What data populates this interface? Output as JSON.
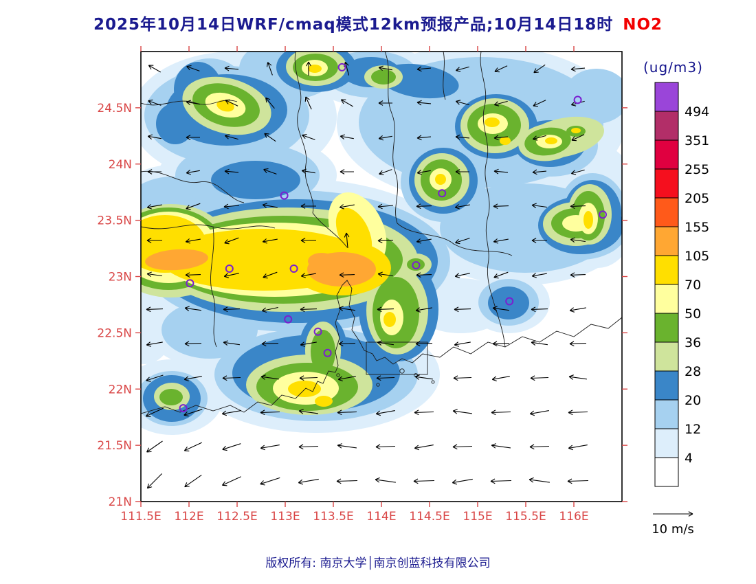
{
  "title": {
    "text": "2025年10月14日WRF/cmaq模式12km预报产品;10月14日18时",
    "pollutant": "NO2"
  },
  "units_label": "(ug/m3)",
  "copyright": "版权所有: 南京大学│南京创蓝科技有限公司",
  "wind_ref": {
    "label": "10 m/s",
    "speed_ms": 10
  },
  "colors": {
    "title": "#1a1a8f",
    "pollutant": "#f20000",
    "axis_label": "#d94545",
    "colorbar_text": "#000000",
    "units_text": "#14148c",
    "marker": "#7a1fd0",
    "wind": "#000000",
    "coast": "#1a1a1a",
    "frame": "#000000"
  },
  "palette": {
    "white": "#ffffff",
    "paleblue": "#ddeefb",
    "lightblue": "#a6d1f0",
    "steelblue": "#3a86c8",
    "palegreen": "#cfe49c",
    "green": "#6ab32e",
    "paleyellow": "#ffff9e",
    "yellow": "#ffdf00",
    "orange": "#ffa733",
    "orangered": "#ff5a1a",
    "red": "#f50f1e",
    "crimson": "#e00040",
    "maroon": "#b22e68",
    "purple": "#9a45d9"
  },
  "axes": {
    "lat": {
      "labels": [
        "24.5N",
        "24N",
        "23.5N",
        "23N",
        "22.5N",
        "22N",
        "21.5N",
        "21N"
      ],
      "values": [
        24.5,
        24,
        23.5,
        23,
        22.5,
        22,
        21.5,
        21
      ]
    },
    "lon": {
      "labels": [
        "111.5E",
        "112E",
        "112.5E",
        "113E",
        "113.5E",
        "114E",
        "114.5E",
        "115E",
        "115.5E",
        "116E"
      ],
      "values": [
        111.5,
        112,
        112.5,
        113,
        113.5,
        114,
        114.5,
        115,
        115.5,
        116
      ]
    },
    "lon_range": [
      111.5,
      116.5
    ],
    "lat_range": [
      21.0,
      25.0
    ]
  },
  "colorbar": {
    "labels_top_down": [
      "494",
      "351",
      "255",
      "205",
      "155",
      "105",
      "70",
      "50",
      "36",
      "28",
      "20",
      "12",
      "4"
    ],
    "order_top_down": [
      "purple",
      "maroon",
      "crimson",
      "red",
      "orangered",
      "orange",
      "yellow",
      "paleyellow",
      "green",
      "palegreen",
      "steelblue",
      "lightblue",
      "paleblue",
      "white"
    ]
  },
  "stations": [
    {
      "lon": 113.59,
      "lat": 24.86
    },
    {
      "lon": 116.04,
      "lat": 24.57
    },
    {
      "lon": 112.99,
      "lat": 23.72
    },
    {
      "lon": 114.63,
      "lat": 23.74
    },
    {
      "lon": 116.3,
      "lat": 23.55
    },
    {
      "lon": 112.42,
      "lat": 23.07
    },
    {
      "lon": 113.09,
      "lat": 23.07
    },
    {
      "lon": 114.36,
      "lat": 23.1
    },
    {
      "lon": 112.01,
      "lat": 22.94
    },
    {
      "lon": 115.33,
      "lat": 22.78
    },
    {
      "lon": 113.03,
      "lat": 22.62
    },
    {
      "lon": 113.34,
      "lat": 22.51
    },
    {
      "lon": 113.44,
      "lat": 22.32
    },
    {
      "lon": 111.94,
      "lat": 21.83
    }
  ],
  "wind_field": {
    "note": "angles in degrees, 0 = toward east, CCW positive; arrows point toward wind direction",
    "angles_deg": [
      [
        150,
        160,
        175,
        110,
        90,
        105,
        170,
        185,
        195,
        205,
        215,
        185
      ],
      [
        160,
        170,
        155,
        130,
        115,
        150,
        180,
        175,
        165,
        195,
        205,
        195
      ],
      [
        170,
        180,
        165,
        145,
        160,
        170,
        190,
        185,
        175,
        185,
        195,
        205
      ],
      [
        180,
        190,
        175,
        160,
        170,
        180,
        200,
        190,
        180,
        175,
        185,
        195
      ],
      [
        190,
        200,
        185,
        170,
        180,
        190,
        185,
        182,
        190,
        182,
        172,
        182
      ],
      [
        180,
        190,
        200,
        190,
        180,
        95,
        182,
        190,
        198,
        190,
        180,
        172
      ],
      [
        172,
        182,
        192,
        200,
        190,
        182,
        172,
        182,
        192,
        200,
        190,
        182
      ],
      [
        182,
        172,
        182,
        192,
        182,
        172,
        182,
        190,
        182,
        172,
        182,
        190
      ],
      [
        190,
        182,
        172,
        182,
        190,
        182,
        172,
        182,
        190,
        182,
        172,
        182
      ],
      [
        198,
        190,
        182,
        172,
        182,
        190,
        182,
        172,
        182,
        190,
        182,
        172
      ],
      [
        205,
        198,
        190,
        182,
        172,
        182,
        190,
        182,
        172,
        182,
        190,
        182
      ],
      [
        215,
        205,
        198,
        190,
        182,
        172,
        182,
        190,
        182,
        172,
        182,
        190
      ],
      [
        225,
        215,
        205,
        198,
        190,
        182,
        172,
        182,
        190,
        182,
        172,
        182
      ]
    ],
    "row_lengths": [
      20,
      20,
      20,
      20,
      22,
      22,
      22,
      24,
      24,
      26,
      28,
      28,
      30
    ]
  },
  "chart_data": {
    "type": "heatmap",
    "title": "2025年10月14日WRF/cmaq模式12km预报产品;10月14日18时 NO2",
    "pollutant": "NO2",
    "units": "ug/m3",
    "model": "WRF/cmaq 12km",
    "valid_time": "10月14日18时",
    "issue_date": "2025年10月14日",
    "lon_range": [
      111.5,
      116.5
    ],
    "lat_range": [
      21.0,
      25.0
    ],
    "contour_levels": [
      4,
      12,
      20,
      28,
      36,
      50,
      70,
      105,
      155,
      205,
      255,
      351,
      494
    ],
    "palette_ascending": [
      "#ffffff",
      "#ddeefb",
      "#a6d1f0",
      "#3a86c8",
      "#cfe49c",
      "#6ab32e",
      "#ffff9e",
      "#ffdf00",
      "#ffa733",
      "#ff5a1a",
      "#f50f1e",
      "#e00040",
      "#b22e68",
      "#9a45d9"
    ],
    "max_band_on_map": "105-155 ug/m3 (orange cores)",
    "features": [
      "broad E-W elevated NO2 band (70-105, cores 105-155) along ~23.0-23.5N from 111.5E to ~114.2E",
      "orange core near 112.0E 23.2N and larger orange core near 113.6E 23.1N",
      "green/yellow patch with core near 113.3E 22.1N (Pearl River estuary west bank)",
      "scattered green patches with small yellow cores across 24-25N between 112.3E and 116.3E",
      "green patch with yellow core near 116.1E 23.4N at right edge",
      "mostly white (<4) over ocean in the southeast with uniform westward wind arrows",
      "purple station circles at major cities"
    ],
    "wind_reference": "10 m/s",
    "legend_position": "right colorbar"
  }
}
